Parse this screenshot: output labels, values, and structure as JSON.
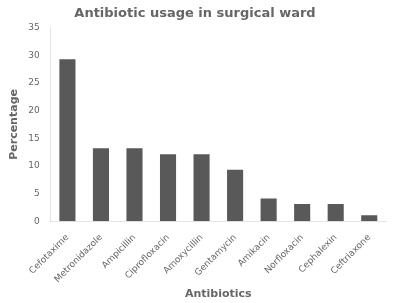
{
  "chart_data": {
    "type": "bar",
    "title": "Antibiotic usage in surgical ward",
    "xlabel": "Antibiotics",
    "ylabel": "Percentage",
    "categories": [
      "Cefotaxime",
      "Metronidazole",
      "Ampicillin",
      "Ciprofloxacin",
      "Amoxycillin",
      "Gentamycin",
      "Amikacin",
      "Norfloxacin",
      "Cephalexin",
      "Ceftriaxone"
    ],
    "values": [
      29.3,
      13.2,
      13.2,
      12.1,
      12.1,
      9.3,
      4.1,
      3.1,
      3.1,
      1.1
    ],
    "color": "#595959",
    "ylim": [
      0,
      35
    ],
    "yticks": [
      0,
      5,
      10,
      15,
      20,
      25,
      30,
      35
    ],
    "grid": false
  }
}
